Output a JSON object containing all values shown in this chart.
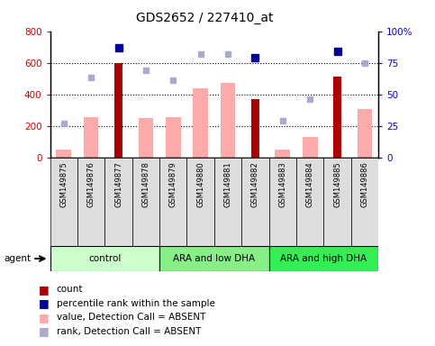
{
  "title": "GDS2652 / 227410_at",
  "samples": [
    "GSM149875",
    "GSM149876",
    "GSM149877",
    "GSM149878",
    "GSM149879",
    "GSM149880",
    "GSM149881",
    "GSM149882",
    "GSM149883",
    "GSM149884",
    "GSM149885",
    "GSM149886"
  ],
  "groups": [
    {
      "label": "control",
      "color": "#ccffcc",
      "start": 0,
      "end": 4
    },
    {
      "label": "ARA and low DHA",
      "color": "#88ee88",
      "start": 4,
      "end": 8
    },
    {
      "label": "ARA and high DHA",
      "color": "#33ee55",
      "start": 8,
      "end": 12
    }
  ],
  "count_bars": [
    null,
    null,
    600,
    null,
    null,
    null,
    null,
    370,
    null,
    null,
    510,
    null
  ],
  "value_absent_bars": [
    50,
    255,
    null,
    248,
    253,
    438,
    470,
    null,
    52,
    130,
    null,
    308
  ],
  "rank_absent_dots_pct": [
    27,
    63,
    null,
    69,
    61,
    82,
    82,
    null,
    29,
    46,
    null,
    75
  ],
  "percentile_rank_dots_pct": [
    null,
    null,
    87,
    null,
    null,
    null,
    null,
    79,
    null,
    null,
    84,
    null
  ],
  "left_ylim": [
    0,
    800
  ],
  "right_ylim": [
    0,
    100
  ],
  "left_yticks": [
    0,
    200,
    400,
    600,
    800
  ],
  "right_yticks": [
    0,
    25,
    50,
    75,
    100
  ],
  "right_yticklabels": [
    "0",
    "25",
    "50",
    "75",
    "100%"
  ],
  "left_ycolor": "#cc0000",
  "right_ycolor": "#0000cc",
  "count_bar_color": "#aa0000",
  "value_absent_bar_color": "#ffaaaa",
  "rank_absent_dot_color": "#aaaacc",
  "percentile_rank_dot_color": "#000099",
  "agent_label": "agent",
  "background_color": "#ffffff",
  "sample_box_color": "#dddddd",
  "grid_dotted_values": [
    200,
    400,
    600
  ]
}
